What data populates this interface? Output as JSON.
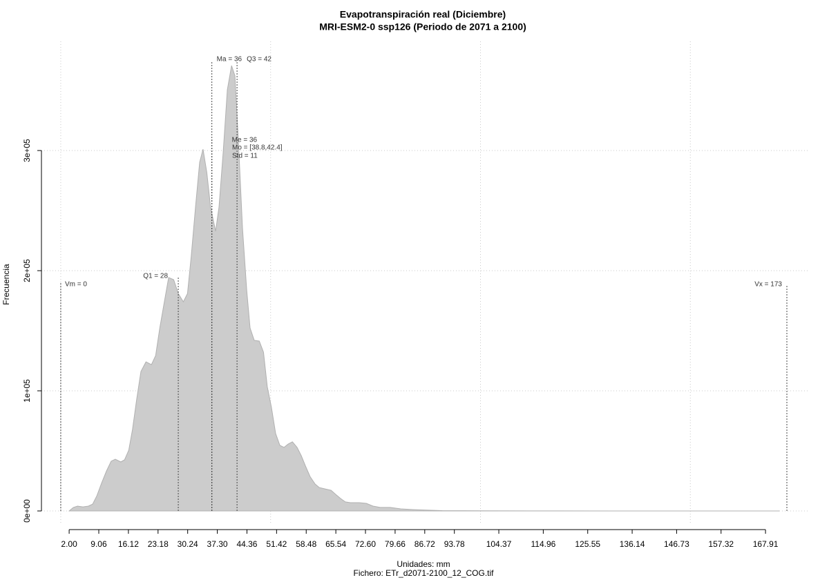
{
  "chart_data": {
    "type": "area",
    "title": "Evapotranspiración real (Diciembre)",
    "subtitle": "MRI-ESM2-0 ssp126 (Periodo de 2071 a 2100)",
    "x_label": "Unidades: mm",
    "caption": "Fichero: ETr_d2071-2100_12_COG.tif",
    "y_label": "Frecuencia",
    "color": "#cccccc",
    "grid": true,
    "x": [
      2,
      3,
      4,
      5.3,
      6.6,
      7.6,
      8.6,
      9.7,
      10.9,
      12,
      13,
      14.3,
      15.2,
      16.2,
      17.1,
      18.1,
      19.1,
      20.3,
      21.6,
      22.6,
      23.6,
      24.6,
      25.7,
      26.9,
      28,
      29.2,
      30.2,
      31.1,
      32.1,
      33.1,
      33.9,
      34.8,
      35.7,
      36.9,
      37.7,
      38.7,
      39.7,
      40.7,
      41.5,
      42.3,
      43.3,
      44.3,
      45.1,
      46.1,
      47.3,
      48.3,
      49.2,
      50.2,
      51.2,
      52.2,
      53.2,
      54.2,
      55.2,
      56.3,
      57.3,
      58.3,
      59.4,
      60.6,
      61.6,
      62.9,
      64.4,
      65.5,
      66.7,
      67.8,
      69,
      71.1,
      72.8,
      74.4,
      76.1,
      78.5,
      81,
      84.3,
      87.6,
      90.9,
      100.8,
      117.2,
      133.7,
      150.1,
      171.2
    ],
    "values": [
      0,
      2900,
      4000,
      3400,
      4000,
      5700,
      12600,
      23000,
      33300,
      41400,
      43100,
      40800,
      42500,
      50600,
      67800,
      93100,
      116100,
      124100,
      121800,
      129300,
      152300,
      172400,
      194300,
      192500,
      181000,
      174100,
      181000,
      212600,
      252900,
      290200,
      301100,
      281600,
      252900,
      232800,
      252900,
      298900,
      350600,
      370700,
      362100,
      310300,
      235600,
      183900,
      152300,
      142000,
      141400,
      132200,
      103400,
      86200,
      64400,
      54600,
      52900,
      55700,
      57500,
      52900,
      46000,
      37400,
      28700,
      22400,
      19500,
      18400,
      17200,
      13800,
      10300,
      7500,
      6900,
      6900,
      6300,
      4000,
      2900,
      2900,
      1700,
      1100,
      600,
      300,
      100,
      50,
      20,
      10,
      0
    ],
    "xlim": [
      -4.6,
      178.1
    ],
    "ylim": [
      -11500,
      390800
    ],
    "xticks": [
      {
        "value": 2,
        "label": "2.00"
      },
      {
        "value": 9.06,
        "label": "9.06"
      },
      {
        "value": 16.12,
        "label": "16.12"
      },
      {
        "value": 23.18,
        "label": "23.18"
      },
      {
        "value": 30.24,
        "label": "30.24"
      },
      {
        "value": 37.3,
        "label": "37.30"
      },
      {
        "value": 44.36,
        "label": "44.36"
      },
      {
        "value": 51.42,
        "label": "51.42"
      },
      {
        "value": 58.48,
        "label": "58.48"
      },
      {
        "value": 65.54,
        "label": "65.54"
      },
      {
        "value": 72.6,
        "label": "72.60"
      },
      {
        "value": 79.66,
        "label": "79.66"
      },
      {
        "value": 86.72,
        "label": "86.72"
      },
      {
        "value": 93.78,
        "label": "93.78"
      },
      {
        "value": 104.37,
        "label": "104.37"
      },
      {
        "value": 114.96,
        "label": "114.96"
      },
      {
        "value": 125.55,
        "label": "125.55"
      },
      {
        "value": 136.14,
        "label": "136.14"
      },
      {
        "value": 146.73,
        "label": "146.73"
      },
      {
        "value": 157.32,
        "label": "157.32"
      },
      {
        "value": 167.91,
        "label": "167.91"
      }
    ],
    "xgrid": [
      0,
      50,
      100,
      150
    ],
    "yticks": [
      {
        "value": 0,
        "label": "0e+00"
      },
      {
        "value": 100000,
        "label": "1e+05"
      },
      {
        "value": 200000,
        "label": "2e+05"
      },
      {
        "value": 300000,
        "label": "3e+05"
      }
    ],
    "annotations": [
      {
        "label": "Vm = 0",
        "x": 0
      },
      {
        "label": "Q1 = 28",
        "x": 28
      },
      {
        "label": "Ma = 36",
        "x": 36
      },
      {
        "label": "Q3 = 42",
        "x": 42
      },
      {
        "label": "Me = 36",
        "x": 36
      },
      {
        "label": "Mo = [38.8,42.4]"
      },
      {
        "label": "Std = 11"
      },
      {
        "label": "Vx = 173",
        "x": 173
      }
    ]
  }
}
